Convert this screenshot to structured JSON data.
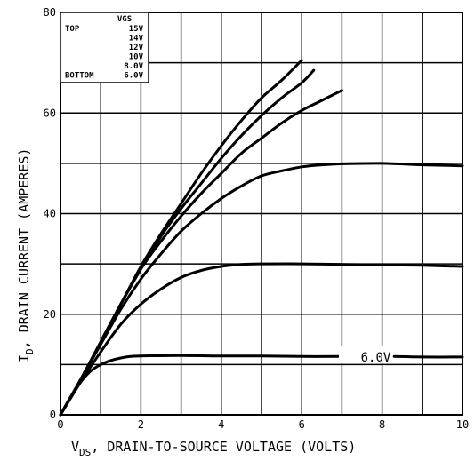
{
  "chart_data": {
    "type": "line",
    "title": "",
    "xlabel_main": "V",
    "xlabel_sub": "DS",
    "xlabel_rest": ", DRAIN-TO-SOURCE VOLTAGE (VOLTS)",
    "ylabel_main": "I",
    "ylabel_sub": "D",
    "ylabel_rest": ", DRAIN CURRENT (AMPERES)",
    "xlim": [
      0,
      10
    ],
    "ylim": [
      0,
      80
    ],
    "x_ticks": [
      0,
      2,
      4,
      6,
      8,
      10
    ],
    "x_tick_labels": [
      "0",
      "2",
      "4",
      "6",
      "8",
      "10"
    ],
    "y_ticks": [
      0,
      20,
      40,
      60,
      80
    ],
    "y_tick_labels": [
      "0",
      "20",
      "40",
      "60",
      "80"
    ],
    "grid": true,
    "legend": {
      "placement": "top-left",
      "header": "VGS",
      "entries": [
        {
          "position": "TOP",
          "value": "15V"
        },
        {
          "position": "",
          "value": "14V"
        },
        {
          "position": "",
          "value": "12V"
        },
        {
          "position": "",
          "value": "10V"
        },
        {
          "position": "",
          "value": "8.0V"
        },
        {
          "position": "BOTTOM",
          "value": "6.0V"
        }
      ]
    },
    "annotation": {
      "text": "6.0V",
      "x": 7.4,
      "y": 11.5
    },
    "series": [
      {
        "value_label": "15V",
        "points": [
          [
            0,
            0
          ],
          [
            0.5,
            7
          ],
          [
            1,
            14.5
          ],
          [
            1.5,
            22
          ],
          [
            2,
            29.5
          ],
          [
            2.5,
            36
          ],
          [
            3,
            42
          ],
          [
            3.5,
            48
          ],
          [
            4,
            53.5
          ],
          [
            4.5,
            58.5
          ],
          [
            5,
            63
          ],
          [
            5.5,
            66.5
          ],
          [
            6,
            70.5
          ]
        ]
      },
      {
        "value_label": "14V",
        "points": [
          [
            0,
            0
          ],
          [
            0.5,
            7
          ],
          [
            1,
            14.5
          ],
          [
            1.5,
            22
          ],
          [
            2,
            29
          ],
          [
            2.5,
            35.5
          ],
          [
            3,
            41
          ],
          [
            3.5,
            46
          ],
          [
            4,
            51
          ],
          [
            4.5,
            55.5
          ],
          [
            5,
            59.5
          ],
          [
            5.5,
            63
          ],
          [
            6,
            66
          ],
          [
            6.3,
            68.5
          ]
        ]
      },
      {
        "value_label": "12V",
        "points": [
          [
            0,
            0
          ],
          [
            0.5,
            7
          ],
          [
            1,
            14.5
          ],
          [
            1.5,
            22
          ],
          [
            2,
            29
          ],
          [
            2.5,
            34.5
          ],
          [
            3,
            39.5
          ],
          [
            3.5,
            44
          ],
          [
            4,
            48
          ],
          [
            4.5,
            52
          ],
          [
            5,
            55
          ],
          [
            5.5,
            58
          ],
          [
            6,
            60.5
          ],
          [
            6.5,
            62.5
          ],
          [
            7,
            64.5
          ]
        ]
      },
      {
        "value_label": "10V",
        "points": [
          [
            0,
            0
          ],
          [
            0.5,
            7
          ],
          [
            1,
            14
          ],
          [
            1.5,
            21
          ],
          [
            2,
            27
          ],
          [
            2.5,
            32
          ],
          [
            3,
            36.5
          ],
          [
            3.5,
            40
          ],
          [
            4,
            43
          ],
          [
            4.5,
            45.5
          ],
          [
            5,
            47.5
          ],
          [
            5.5,
            48.5
          ],
          [
            6,
            49.3
          ],
          [
            6.5,
            49.7
          ],
          [
            7,
            49.9
          ],
          [
            8,
            50
          ],
          [
            9,
            49.7
          ],
          [
            10,
            49.5
          ]
        ]
      },
      {
        "value_label": "8.0V",
        "points": [
          [
            0,
            0
          ],
          [
            0.5,
            6.5
          ],
          [
            1,
            12.5
          ],
          [
            1.5,
            18
          ],
          [
            2,
            22
          ],
          [
            2.5,
            25
          ],
          [
            3,
            27.3
          ],
          [
            3.5,
            28.7
          ],
          [
            4,
            29.5
          ],
          [
            4.5,
            29.9
          ],
          [
            5,
            30
          ],
          [
            6,
            30
          ],
          [
            7,
            29.9
          ],
          [
            8,
            29.8
          ],
          [
            9,
            29.7
          ],
          [
            10,
            29.5
          ]
        ]
      },
      {
        "value_label": "6.0V",
        "points": [
          [
            0,
            0
          ],
          [
            0.25,
            3.5
          ],
          [
            0.5,
            6.5
          ],
          [
            0.75,
            8.7
          ],
          [
            1,
            10
          ],
          [
            1.25,
            10.8
          ],
          [
            1.5,
            11.3
          ],
          [
            1.75,
            11.6
          ],
          [
            2,
            11.7
          ],
          [
            3,
            11.8
          ],
          [
            4,
            11.7
          ],
          [
            5,
            11.7
          ],
          [
            6,
            11.6
          ],
          [
            7,
            11.6
          ],
          [
            7.3,
            11.6
          ]
        ]
      },
      {
        "value_label": "6.0V",
        "points": [
          [
            8.3,
            11.6
          ],
          [
            9,
            11.5
          ],
          [
            10,
            11.5
          ]
        ]
      }
    ]
  }
}
